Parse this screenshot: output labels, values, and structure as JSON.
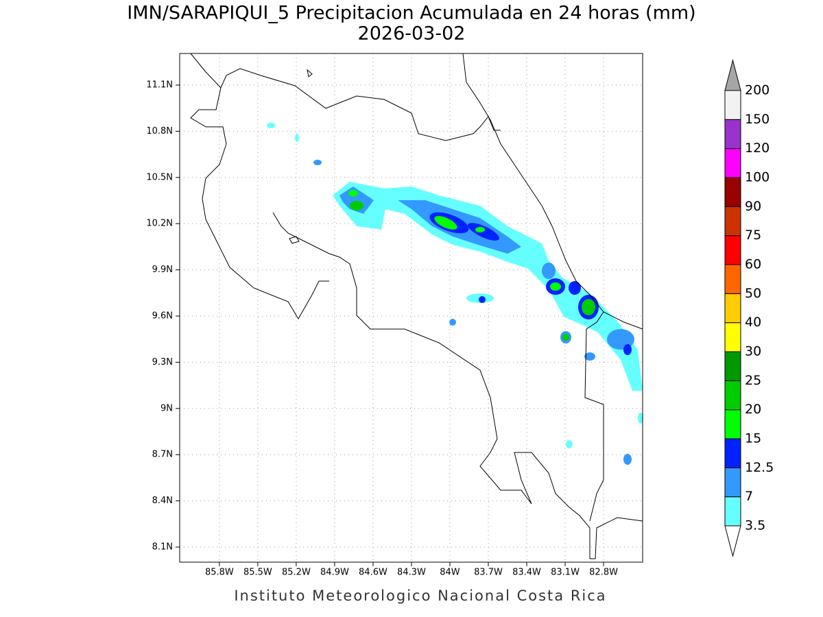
{
  "map": {
    "title": "IMN/SARAPIQUI_5 Precipitacion Acumulada en 24 horas (mm)",
    "subtitle": "2026-03-02",
    "footer": "Instituto Meteorologico Nacional Costa Rica",
    "xlim": [
      -86.11,
      -82.495
    ],
    "ylim": [
      8.002,
      11.305
    ],
    "xticks": [
      {
        "value": -85.8,
        "label": "85.8W"
      },
      {
        "value": -85.5,
        "label": "85.5W"
      },
      {
        "value": -85.2,
        "label": "85.2W"
      },
      {
        "value": -84.9,
        "label": "84.9W"
      },
      {
        "value": -84.6,
        "label": "84.6W"
      },
      {
        "value": -84.3,
        "label": "84.3W"
      },
      {
        "value": -84.0,
        "label": "84W"
      },
      {
        "value": -83.7,
        "label": "83.7W"
      },
      {
        "value": -83.4,
        "label": "83.4W"
      },
      {
        "value": -83.1,
        "label": "83.1W"
      },
      {
        "value": -82.8,
        "label": "82.8W"
      }
    ],
    "yticks": [
      {
        "value": 8.1,
        "label": "8.1N"
      },
      {
        "value": 8.4,
        "label": "8.4N"
      },
      {
        "value": 8.7,
        "label": "8.7N"
      },
      {
        "value": 9.0,
        "label": "9N"
      },
      {
        "value": 9.3,
        "label": "9.3N"
      },
      {
        "value": 9.6,
        "label": "9.6N"
      },
      {
        "value": 9.9,
        "label": "9.9N"
      },
      {
        "value": 10.2,
        "label": "10.2N"
      },
      {
        "value": 10.5,
        "label": "10.5N"
      },
      {
        "value": 10.8,
        "label": "10.8N"
      },
      {
        "value": 11.1,
        "label": "11.1N"
      }
    ],
    "grid": true,
    "colorbar": {
      "levels": [
        3.5,
        7,
        12.5,
        15,
        20,
        25,
        30,
        40,
        50,
        60,
        75,
        90,
        100,
        120,
        150,
        200
      ],
      "colors": [
        "#ffffff",
        "#66ffff",
        "#3399ff",
        "#0022ff",
        "#00ff00",
        "#00cc00",
        "#009900",
        "#ffff00",
        "#ffcc00",
        "#ff6600",
        "#ff0000",
        "#cc3300",
        "#990000",
        "#ff00ff",
        "#9933cc",
        "#f2f2f2",
        "#a6a6a6"
      ]
    }
  }
}
